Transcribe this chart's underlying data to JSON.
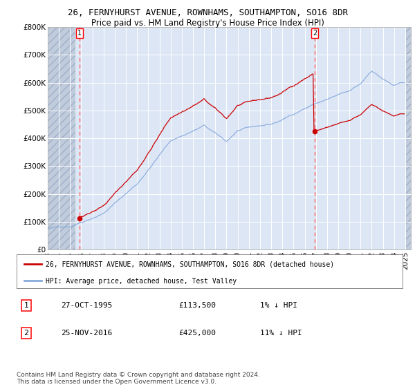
{
  "title1": "26, FERNYHURST AVENUE, ROWNHAMS, SOUTHAMPTON, SO16 8DR",
  "title2": "Price paid vs. HM Land Registry's House Price Index (HPI)",
  "ylim": [
    0,
    800000
  ],
  "ytick_labels": [
    "£0",
    "£100K",
    "£200K",
    "£300K",
    "£400K",
    "£500K",
    "£600K",
    "£700K",
    "£800K"
  ],
  "sale1_year": 1995.83,
  "sale1_price": 113500,
  "sale2_year": 2016.9,
  "sale2_price": 425000,
  "hatch_end_year": 1995.5,
  "hatch_start_year2": 2025.0,
  "xmin": 1993.0,
  "xmax": 2025.5,
  "legend_line1": "26, FERNYHURST AVENUE, ROWNHAMS, SOUTHAMPTON, SO16 8DR (detached house)",
  "legend_line2": "HPI: Average price, detached house, Test Valley",
  "annotation1_date": "27-OCT-1995",
  "annotation1_price": "£113,500",
  "annotation1_hpi": "1% ↓ HPI",
  "annotation2_date": "25-NOV-2016",
  "annotation2_price": "£425,000",
  "annotation2_hpi": "11% ↓ HPI",
  "footer": "Contains HM Land Registry data © Crown copyright and database right 2024.\nThis data is licensed under the Open Government Licence v3.0.",
  "bg_color": "#dce6f5",
  "hatch_color": "#c0ccdc",
  "line_red": "#cc0000",
  "line_blue": "#88aadd",
  "dashed_color": "#ff6666",
  "grid_color": "#ffffff",
  "fig_bg": "#ffffff",
  "title1_fontsize": 9.0,
  "title2_fontsize": 8.5,
  "tick_fontsize": 7.5,
  "legend_fontsize": 7.0,
  "ann_fontsize": 8.0,
  "footer_fontsize": 6.5
}
